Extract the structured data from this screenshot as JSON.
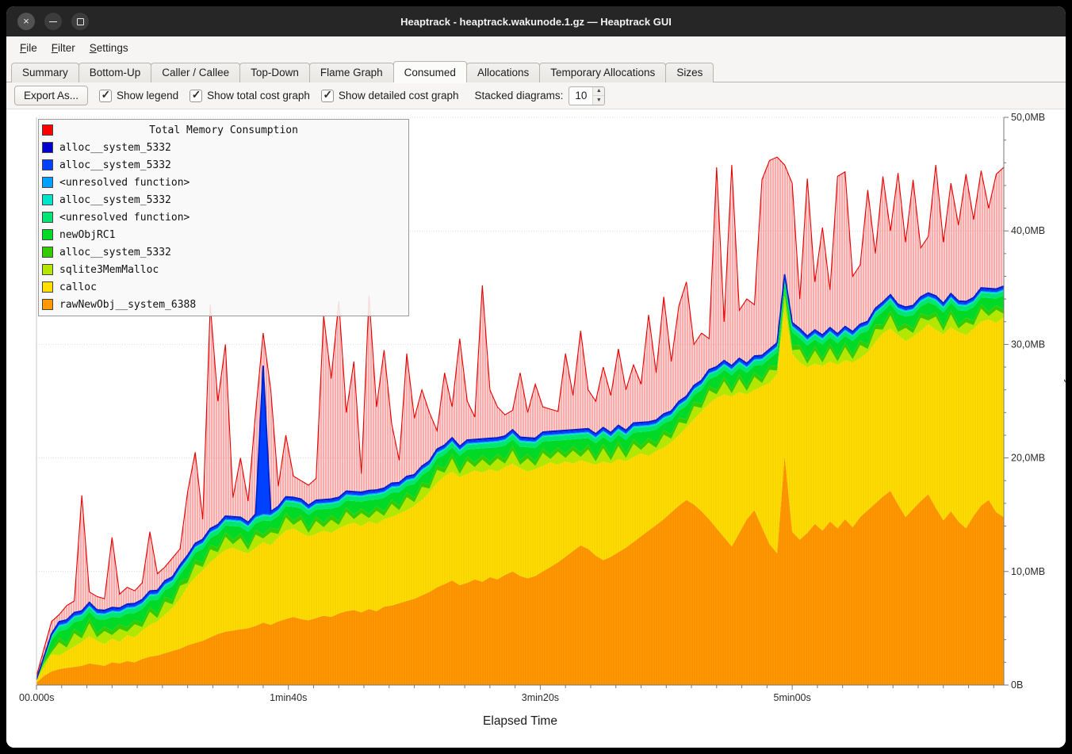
{
  "window": {
    "title": "Heaptrack - heaptrack.wakunode.1.gz — Heaptrack GUI",
    "controls": [
      "close",
      "minimize",
      "maximize"
    ]
  },
  "menu": {
    "items": [
      "File",
      "Filter",
      "Settings"
    ]
  },
  "tabs": {
    "active": "Consumed",
    "items": [
      "Summary",
      "Bottom-Up",
      "Caller / Callee",
      "Top-Down",
      "Flame Graph",
      "Consumed",
      "Allocations",
      "Temporary Allocations",
      "Sizes"
    ]
  },
  "toolbar": {
    "export_label": "Export As...",
    "checkboxes": [
      {
        "label": "Show legend",
        "checked": true
      },
      {
        "label": "Show total cost graph",
        "checked": true
      },
      {
        "label": "Show detailed cost graph",
        "checked": true
      }
    ],
    "stacked_label": "Stacked diagrams:",
    "stacked_value": "10"
  },
  "chart_data": {
    "type": "area",
    "title": "Total Memory Consumption",
    "xlabel": "Elapsed Time",
    "ylabel": "Memory Consumed",
    "ylim": [
      0,
      50
    ],
    "x_start": 0,
    "x_step": 3,
    "x_end": 384,
    "x_ticks": [
      {
        "t": 0,
        "label": "00.000s"
      },
      {
        "t": 100,
        "label": "1min40s"
      },
      {
        "t": 200,
        "label": "3min20s"
      },
      {
        "t": 300,
        "label": "5min00s"
      }
    ],
    "y_ticks": [
      {
        "v": 0,
        "label": "0B"
      },
      {
        "v": 10,
        "label": "10,0MB"
      },
      {
        "v": 20,
        "label": "20,0MB"
      },
      {
        "v": 30,
        "label": "30,0MB"
      },
      {
        "v": 40,
        "label": "40,0MB"
      },
      {
        "v": 50,
        "label": "50,0MB"
      }
    ],
    "stacked_series": [
      {
        "name": "rawNewObj__system_6388",
        "color": "#ff9900",
        "values": [
          0.2,
          0.8,
          1.2,
          1.4,
          1.5,
          1.6,
          1.7,
          1.9,
          1.8,
          1.7,
          2.0,
          1.9,
          2.1,
          2.0,
          2.3,
          2.5,
          2.6,
          2.8,
          3.0,
          3.2,
          3.5,
          3.7,
          3.9,
          4.2,
          4.5,
          4.7,
          4.8,
          4.9,
          5.0,
          5.2,
          5.5,
          5.3,
          5.6,
          5.8,
          6.0,
          5.8,
          5.7,
          5.9,
          6.1,
          6.0,
          6.3,
          6.5,
          6.6,
          6.4,
          6.7,
          6.5,
          6.9,
          7.0,
          7.2,
          7.4,
          7.6,
          7.9,
          8.2,
          8.6,
          8.9,
          9.2,
          8.8,
          9.0,
          9.3,
          9.1,
          9.5,
          9.3,
          9.7,
          10.0,
          9.6,
          9.4,
          9.6,
          10.0,
          10.4,
          10.8,
          11.3,
          11.8,
          12.3,
          12.0,
          11.4,
          11.0,
          11.3,
          11.7,
          12.1,
          12.6,
          13.1,
          13.6,
          14.1,
          14.6,
          15.2,
          15.8,
          16.3,
          15.9,
          15.3,
          14.6,
          13.8,
          13.0,
          12.2,
          13.4,
          14.6,
          15.4,
          13.9,
          12.4,
          11.6,
          20.2,
          13.5,
          12.8,
          13.4,
          14.2,
          13.6,
          14.4,
          13.8,
          14.6,
          13.9,
          14.8,
          15.4,
          16.0,
          16.6,
          17.1,
          15.9,
          14.8,
          15.5,
          16.2,
          16.8,
          15.6,
          14.5,
          15.3,
          14.4,
          13.8,
          14.9,
          15.8,
          16.3,
          15.2,
          14.8
        ]
      },
      {
        "name": "calloc",
        "color": "#ffdf00",
        "values": [
          0.3,
          0.7,
          1.5,
          1.2,
          1.5,
          1.8,
          2.1,
          2.4,
          2.1,
          1.9,
          2.1,
          1.9,
          2.3,
          2.2,
          2.5,
          2.8,
          3.0,
          3.4,
          3.8,
          4.4,
          5.2,
          5.8,
          6.2,
          6.6,
          6.9,
          7.2,
          7.3,
          6.9,
          6.6,
          6.9,
          7.1,
          7.0,
          7.4,
          7.8,
          7.8,
          7.6,
          7.4,
          7.4,
          7.5,
          7.4,
          7.5,
          7.6,
          7.7,
          7.6,
          7.7,
          7.7,
          7.7,
          7.8,
          7.9,
          8.0,
          8.2,
          8.4,
          8.8,
          9.2,
          9.5,
          9.6,
          9.5,
          9.6,
          9.6,
          9.6,
          9.5,
          9.5,
          9.5,
          9.5,
          9.5,
          9.4,
          9.4,
          9.3,
          9.2,
          8.6,
          8.4,
          7.7,
          7.5,
          7.6,
          8.0,
          8.7,
          8.2,
          8.2,
          7.6,
          7.5,
          7.3,
          6.6,
          6.5,
          6.3,
          6.2,
          6.2,
          6.4,
          7.5,
          8.8,
          10.2,
          11.5,
          12.6,
          13.2,
          12.4,
          11.0,
          10.6,
          12.4,
          14.2,
          15.8,
          13.0,
          15.7,
          15.6,
          14.6,
          14.1,
          14.5,
          14.1,
          14.4,
          14.0,
          14.5,
          14.0,
          13.9,
          14.2,
          14.4,
          14.3,
          14.9,
          15.5,
          15.2,
          15.0,
          15.0,
          15.7,
          16.4,
          16.2,
          16.7,
          17.0,
          16.5,
          16.2,
          15.9,
          16.7,
          17.6
        ]
      },
      {
        "name": "sqlite3MemMalloc",
        "color": "#b3e600",
        "alt": [
          0.3,
          1.15
        ]
      },
      {
        "name": "alloc__system_5332",
        "color": "#33cc00",
        "constant": 0.4
      },
      {
        "name": "newObjRC1",
        "color": "#00d926",
        "alt": [
          1.2,
          0.6
        ]
      },
      {
        "name": "<unresolved function>",
        "color": "#00e673",
        "constant": 0.4
      },
      {
        "name": "alloc__system_5332",
        "color": "#00e5cc",
        "constant": 0.08
      },
      {
        "name": "<unresolved function>",
        "color": "#00a0ff",
        "constant": 0.08
      },
      {
        "name": "alloc__system_5332",
        "color": "#0040ff",
        "constant": 0.18,
        "spikes": {
          "30": 12.8
        }
      },
      {
        "name": "alloc__system_5332",
        "color": "#0000cd",
        "constant": 0.09
      }
    ],
    "total_series": {
      "name": "Total Memory Consumption",
      "color": "#ff0000",
      "values": [
        0.8,
        3.2,
        5.6,
        6.2,
        7.0,
        7.4,
        16.7,
        8.2,
        7.8,
        7.6,
        13.0,
        8.0,
        8.6,
        8.3,
        9.0,
        13.5,
        9.8,
        10.4,
        11.2,
        12.0,
        17.0,
        20.5,
        14.6,
        33.5,
        25.0,
        30.0,
        16.5,
        20.0,
        16.2,
        24.0,
        31.0,
        26.0,
        17.5,
        22.0,
        18.4,
        18.0,
        17.6,
        18.2,
        32.5,
        27.0,
        33.8,
        24.0,
        28.5,
        18.6,
        34.3,
        24.5,
        29.5,
        23.0,
        19.8,
        29.2,
        23.5,
        26.0,
        24.0,
        22.4,
        27.5,
        24.5,
        30.5,
        25.0,
        23.6,
        35.2,
        26.0,
        24.5,
        23.8,
        24.2,
        27.5,
        24.0,
        26.5,
        24.5,
        24.3,
        24.1,
        29.2,
        25.5,
        31.2,
        26.0,
        25.0,
        28.0,
        25.5,
        29.6,
        26.0,
        28.2,
        26.5,
        32.6,
        27.5,
        34.2,
        28.5,
        33.4,
        35.5,
        30.0,
        31.0,
        30.5,
        45.6,
        32.0,
        45.8,
        33.0,
        34.0,
        33.5,
        44.5,
        46.2,
        46.5,
        45.8,
        44.2,
        34.0,
        44.6,
        35.5,
        40.3,
        34.8,
        44.8,
        45.2,
        36.0,
        37.0,
        43.6,
        38.0,
        44.8,
        40.0,
        45.1,
        39.0,
        44.5,
        38.5,
        39.5,
        45.8,
        39.0,
        44.2,
        40.5,
        45.0,
        41.0,
        45.3,
        42.0,
        45.0,
        45.6
      ]
    },
    "legend": {
      "position": "top-left",
      "grid": "horizontal"
    }
  }
}
